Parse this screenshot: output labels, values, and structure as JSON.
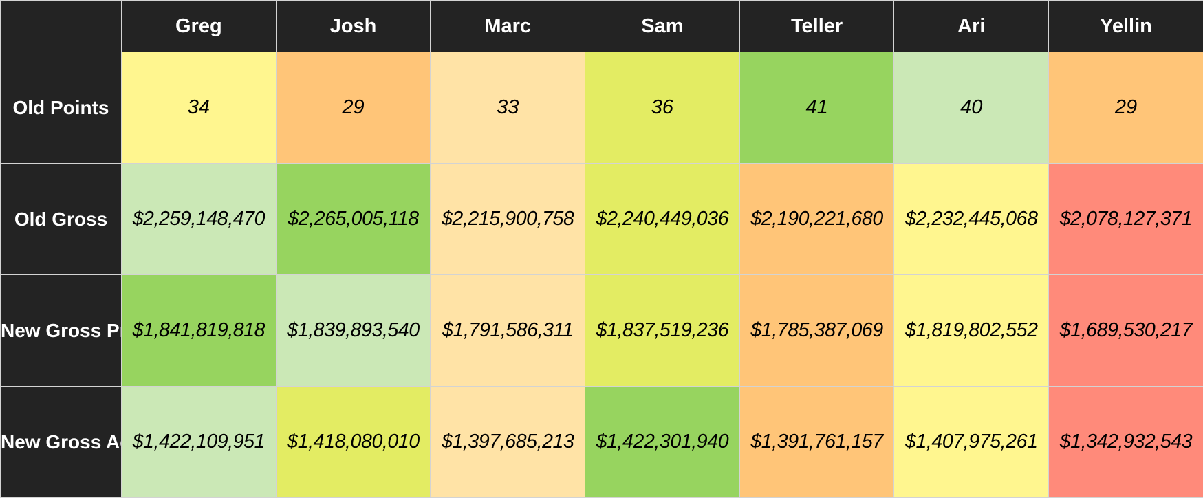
{
  "chart_data": {
    "type": "table",
    "columns": [
      "Greg",
      "Josh",
      "Marc",
      "Sam",
      "Teller",
      "Ari",
      "Yellin"
    ],
    "rows": [
      {
        "label": "Old Points",
        "kind": "points",
        "values": [
          "34",
          "29",
          "33",
          "36",
          "41",
          "40",
          "29"
        ],
        "colors": [
          "#fff68f",
          "#ffc578",
          "#ffe3a6",
          "#e3ec63",
          "#97d45f",
          "#cbe8b6",
          "#ffc578"
        ]
      },
      {
        "label": "Old Gross",
        "kind": "money",
        "values": [
          "$2,259,148,470",
          "$2,265,005,118",
          "$2,215,900,758",
          "$2,240,449,036",
          "$2,190,221,680",
          "$2,232,445,068",
          "$2,078,127,371"
        ],
        "colors": [
          "#cbe8b6",
          "#97d45f",
          "#ffe3a6",
          "#e3ec63",
          "#ffc578",
          "#fff68f",
          "#ff8a7a"
        ]
      },
      {
        "label": "New Gross Projected",
        "kind": "money",
        "values": [
          "$1,841,819,818",
          "$1,839,893,540",
          "$1,791,586,311",
          "$1,837,519,236",
          "$1,785,387,069",
          "$1,819,802,552",
          "$1,689,530,217"
        ],
        "colors": [
          "#97d45f",
          "#cbe8b6",
          "#ffe3a6",
          "#e3ec63",
          "#ffc578",
          "#fff68f",
          "#ff8a7a"
        ]
      },
      {
        "label": "New Gross Actual",
        "kind": "money",
        "values": [
          "$1,422,109,951",
          "$1,418,080,010",
          "$1,397,685,213",
          "$1,422,301,940",
          "$1,391,761,157",
          "$1,407,975,261",
          "$1,342,932,543"
        ],
        "colors": [
          "#cbe8b6",
          "#e3ec63",
          "#ffe3a6",
          "#97d45f",
          "#ffc578",
          "#fff68f",
          "#ff8a7a"
        ]
      }
    ],
    "header_background": "#232323",
    "header_text_color": "#ffffff"
  }
}
